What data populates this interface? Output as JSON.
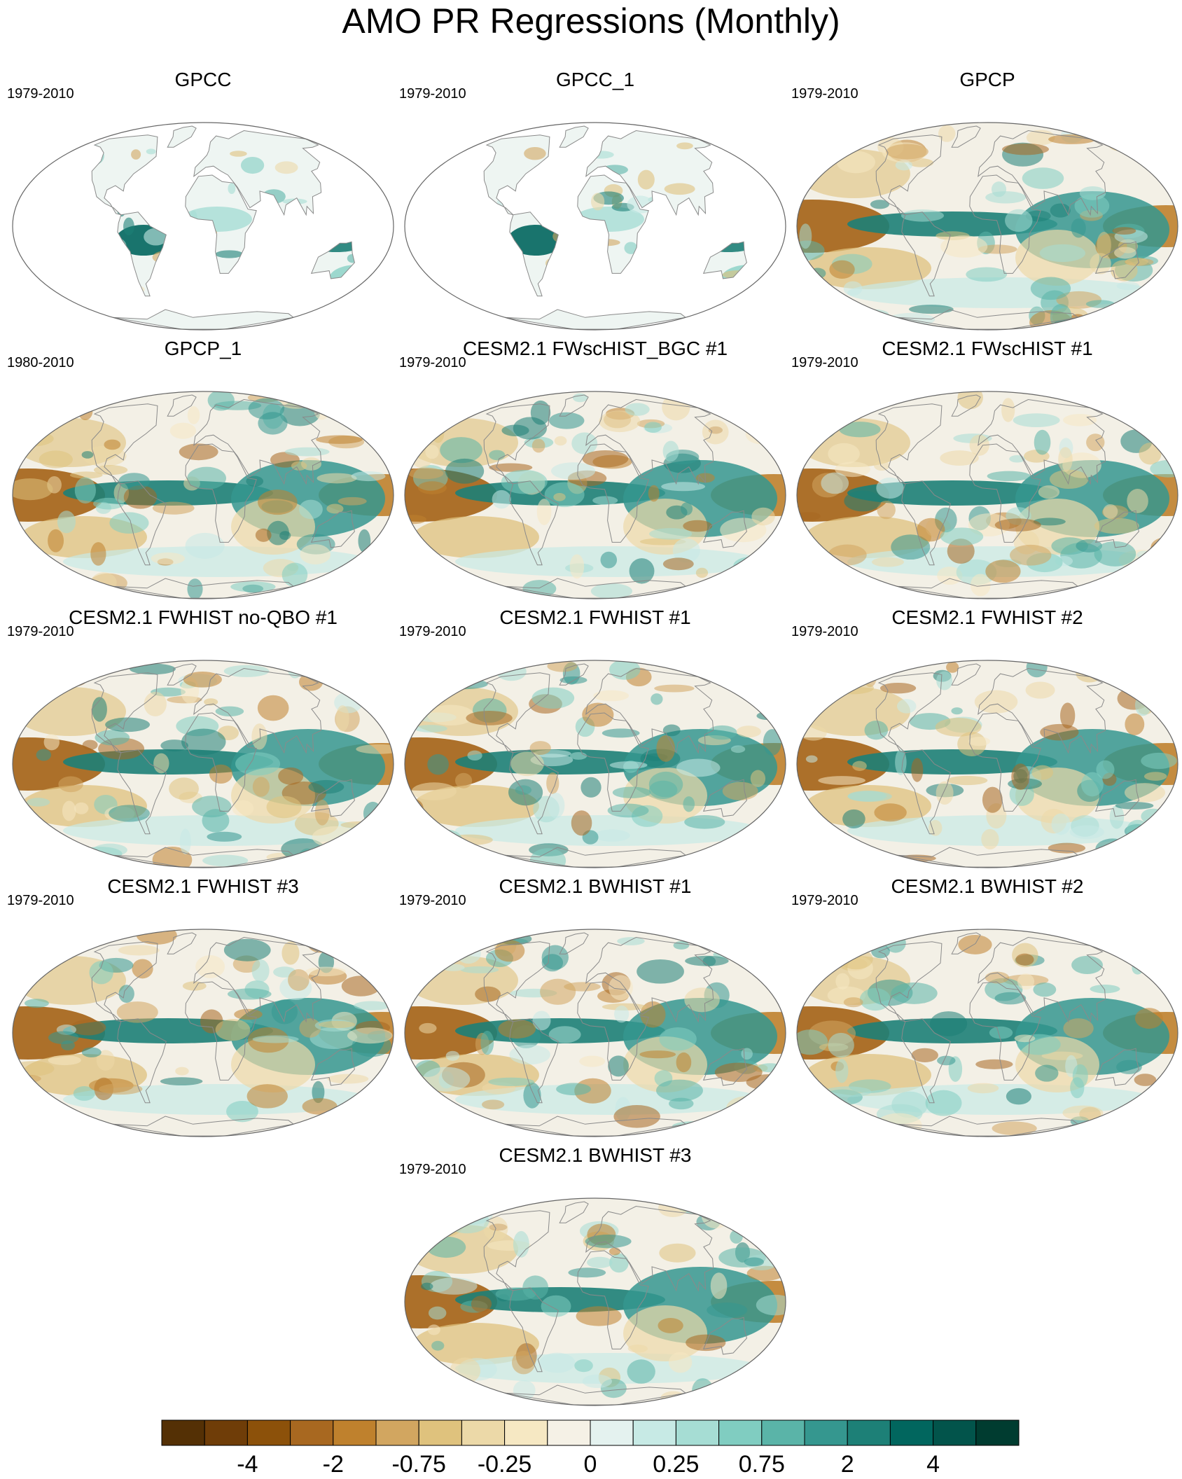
{
  "title": "AMO PR Regressions (Monthly)",
  "panels": [
    {
      "title": "GPCC",
      "period": "1979-2010",
      "kind": "land"
    },
    {
      "title": "GPCC_1",
      "period": "1979-2010",
      "kind": "land"
    },
    {
      "title": "GPCP",
      "period": "1979-2010",
      "kind": "full"
    },
    {
      "title": "GPCP_1",
      "period": "1980-2010",
      "kind": "full"
    },
    {
      "title": "CESM2.1 FWscHIST_BGC #1",
      "period": "1979-2010",
      "kind": "full"
    },
    {
      "title": "CESM2.1 FWscHIST #1",
      "period": "1979-2010",
      "kind": "full"
    },
    {
      "title": "CESM2.1 FWHIST no-QBO #1",
      "period": "1979-2010",
      "kind": "full"
    },
    {
      "title": "CESM2.1 FWHIST #1",
      "period": "1979-2010",
      "kind": "full"
    },
    {
      "title": "CESM2.1 FWHIST #2",
      "period": "1979-2010",
      "kind": "full"
    },
    {
      "title": "CESM2.1 FWHIST #3",
      "period": "1979-2010",
      "kind": "full"
    },
    {
      "title": "CESM2.1 BWHIST #1",
      "period": "1979-2010",
      "kind": "full"
    },
    {
      "title": "CESM2.1 BWHIST #2",
      "period": "1979-2010",
      "kind": "full"
    },
    {
      "title": "CESM2.1 BWHIST #3",
      "period": "1979-2010",
      "kind": "full"
    }
  ],
  "colorbar": {
    "colors": [
      "#543005",
      "#6f3d08",
      "#8c510a",
      "#a86820",
      "#bf812d",
      "#d2a660",
      "#dfc27d",
      "#ecd9a8",
      "#f6e8c3",
      "#f5f1e6",
      "#e4f2ef",
      "#c7eae5",
      "#a6ddd4",
      "#80cdc1",
      "#5ab4a8",
      "#35978f",
      "#1d8077",
      "#01665e",
      "#02544b",
      "#003c30"
    ],
    "tick_labels": [
      "-4",
      "-2",
      "-0.75",
      "-0.25",
      "0",
      "0.25",
      "0.75",
      "2",
      "4"
    ],
    "tick_boundaries": [
      2,
      4,
      6,
      8,
      10,
      12,
      14,
      16,
      18
    ]
  },
  "colors": {
    "land_outline": "#8a8a8a",
    "map_border": "#666666"
  }
}
